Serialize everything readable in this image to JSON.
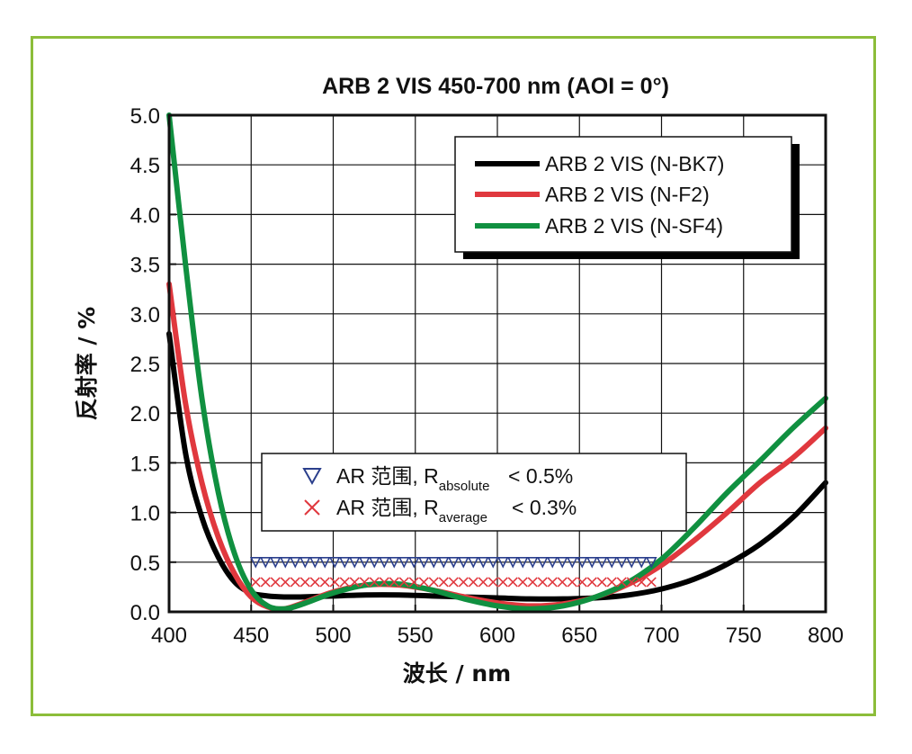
{
  "chart_data": {
    "type": "line",
    "title": "ARB 2 VIS 450-700 nm (AOI = 0°)",
    "xlabel": "波长 / nm",
    "ylabel": "反射率 / %",
    "xlim": [
      400,
      800
    ],
    "ylim": [
      0,
      5
    ],
    "x_ticks": [
      "400",
      "450",
      "500",
      "550",
      "600",
      "650",
      "700",
      "750",
      "800"
    ],
    "y_ticks": [
      "0.0",
      "0.5",
      "1.0",
      "1.5",
      "2.0",
      "2.5",
      "3.0",
      "3.5",
      "4.0",
      "4.5",
      "5.0"
    ],
    "grid": true,
    "legend_placement": "top-right",
    "series": [
      {
        "name": "ARB 2 VIS (N-BK7)",
        "color": "#000000",
        "x": [
          400,
          410,
          420,
          430,
          440,
          450,
          460,
          470,
          480,
          500,
          520,
          540,
          560,
          580,
          600,
          620,
          640,
          660,
          680,
          700,
          720,
          740,
          760,
          780,
          800
        ],
        "y": [
          2.8,
          1.6,
          0.95,
          0.55,
          0.3,
          0.19,
          0.16,
          0.15,
          0.15,
          0.16,
          0.17,
          0.17,
          0.16,
          0.15,
          0.14,
          0.13,
          0.13,
          0.14,
          0.17,
          0.23,
          0.33,
          0.48,
          0.68,
          0.95,
          1.3
        ]
      },
      {
        "name": "ARB 2 VIS (N-F2)",
        "color": "#e0383e",
        "x": [
          400,
          410,
          420,
          430,
          440,
          450,
          460,
          470,
          480,
          500,
          520,
          540,
          560,
          580,
          600,
          620,
          640,
          660,
          680,
          700,
          720,
          740,
          760,
          780,
          800
        ],
        "y": [
          3.3,
          2.1,
          1.3,
          0.75,
          0.38,
          0.15,
          0.05,
          0.03,
          0.08,
          0.2,
          0.27,
          0.27,
          0.22,
          0.15,
          0.09,
          0.06,
          0.08,
          0.15,
          0.28,
          0.47,
          0.72,
          1.0,
          1.3,
          1.55,
          1.85
        ]
      },
      {
        "name": "ARB 2 VIS (N-SF4)",
        "color": "#109040",
        "x": [
          400,
          410,
          420,
          430,
          440,
          450,
          460,
          470,
          480,
          500,
          520,
          540,
          560,
          580,
          600,
          620,
          640,
          660,
          680,
          700,
          720,
          740,
          760,
          780,
          800
        ],
        "y": [
          5.0,
          3.5,
          2.15,
          1.2,
          0.58,
          0.22,
          0.06,
          0.03,
          0.07,
          0.19,
          0.27,
          0.28,
          0.22,
          0.13,
          0.06,
          0.03,
          0.06,
          0.15,
          0.3,
          0.53,
          0.85,
          1.2,
          1.52,
          1.85,
          2.15
        ]
      }
    ],
    "ranges": [
      {
        "label_main": "AR 范围, R",
        "label_sub": "absolute",
        "label_tail": "< 0.5%",
        "marker": "triangle-down",
        "color": "#2b3f8c",
        "x_start": 450,
        "x_end": 700,
        "y": 0.5
      },
      {
        "label_main": "AR 范围, R",
        "label_sub": "average",
        "label_tail": "< 0.3%",
        "marker": "x",
        "color": "#e0383e",
        "x_start": 450,
        "x_end": 700,
        "y": 0.3
      }
    ]
  }
}
